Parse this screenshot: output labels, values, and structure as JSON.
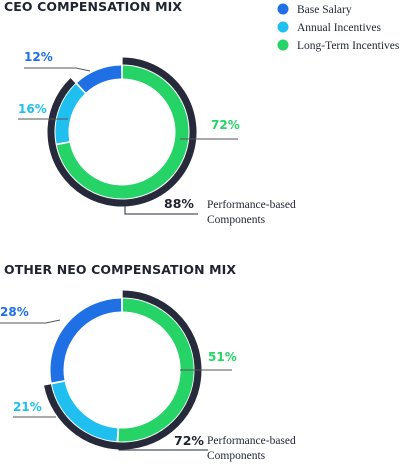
{
  "legend": [
    {
      "label": "Base Salary",
      "color": "#1f6fe5"
    },
    {
      "label": "Annual Incentives",
      "color": "#1fc0ef"
    },
    {
      "label": "Long-Term Incentives",
      "color": "#25d366"
    }
  ],
  "colors": {
    "dark_ring": "#262a3a",
    "text_dark": "#1f2430",
    "leader_line": "#555555"
  },
  "chart_data": [
    {
      "type": "pie",
      "title": "CEO COMPENSATION MIX",
      "slices": [
        {
          "label": "Base Salary",
          "value": 12,
          "display": "12%",
          "color": "#1f6fe5"
        },
        {
          "label": "Annual Incentives",
          "value": 16,
          "display": "16%",
          "color": "#1fc0ef"
        },
        {
          "label": "Long-Term Incentives",
          "value": 72,
          "display": "72%",
          "color": "#25d366"
        }
      ],
      "performance_based": {
        "value": 88,
        "display": "88%",
        "label_line1": "Performance-based",
        "label_line2": "Components"
      }
    },
    {
      "type": "pie",
      "title": "OTHER NEO COMPENSATION MIX",
      "slices": [
        {
          "label": "Base Salary",
          "value": 28,
          "display": "28%",
          "color": "#1f6fe5"
        },
        {
          "label": "Annual Incentives",
          "value": 21,
          "display": "21%",
          "color": "#1fc0ef"
        },
        {
          "label": "Long-Term Incentives",
          "value": 51,
          "display": "51%",
          "color": "#25d366"
        }
      ],
      "performance_based": {
        "value": 72,
        "display": "72%",
        "label_line1": "Performance-based",
        "label_line2": "Components"
      }
    }
  ]
}
